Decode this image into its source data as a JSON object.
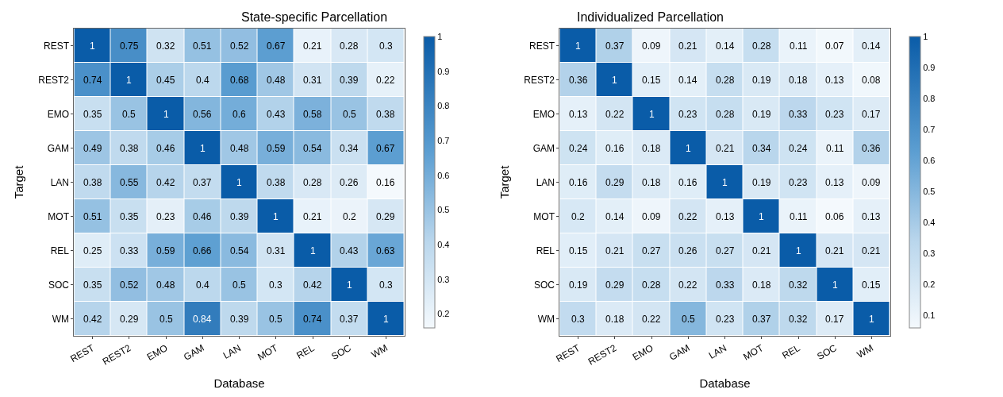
{
  "chart_data": [
    {
      "type": "heatmap",
      "title": "State-specific Parcellation",
      "xlabel": "Database",
      "ylabel": "Target",
      "categories": [
        "REST",
        "REST2",
        "EMO",
        "GAM",
        "LAN",
        "MOT",
        "REL",
        "SOC",
        "WM"
      ],
      "y_categories": [
        "REST",
        "REST2",
        "EMO",
        "GAM",
        "LAN",
        "MOT",
        "REL",
        "SOC",
        "WM"
      ],
      "cells": [
        [
          1,
          0.75,
          0.32,
          0.51,
          0.52,
          0.67,
          0.21,
          0.28,
          0.3
        ],
        [
          0.74,
          1,
          0.45,
          0.4,
          0.68,
          0.48,
          0.31,
          0.39,
          0.22
        ],
        [
          0.35,
          0.5,
          1,
          0.56,
          0.6,
          0.43,
          0.58,
          0.5,
          0.38
        ],
        [
          0.49,
          0.38,
          0.46,
          1,
          0.48,
          0.59,
          0.54,
          0.34,
          0.67
        ],
        [
          0.38,
          0.55,
          0.42,
          0.37,
          1,
          0.38,
          0.28,
          0.26,
          0.16
        ],
        [
          0.51,
          0.35,
          0.23,
          0.46,
          0.39,
          1,
          0.21,
          0.2,
          0.29
        ],
        [
          0.25,
          0.33,
          0.59,
          0.66,
          0.54,
          0.31,
          1,
          0.43,
          0.63
        ],
        [
          0.35,
          0.52,
          0.48,
          0.4,
          0.5,
          0.3,
          0.42,
          1,
          0.3
        ],
        [
          0.42,
          0.29,
          0.5,
          0.84,
          0.39,
          0.5,
          0.74,
          0.37,
          1
        ]
      ],
      "data_labels": true,
      "clim": [
        0.16,
        1
      ],
      "cticks": [
        0.2,
        0.3,
        0.4,
        0.5,
        0.6,
        0.7,
        0.8,
        0.9,
        1
      ]
    },
    {
      "type": "heatmap",
      "title": "Individualized Parcellation",
      "xlabel": "Database",
      "ylabel": "Target",
      "categories": [
        "REST",
        "REST2",
        "EMO",
        "GAM",
        "LAN",
        "MOT",
        "REL",
        "SOC",
        "WM"
      ],
      "y_categories": [
        "REST",
        "REST2",
        "EMO",
        "GAM",
        "LAN",
        "MOT",
        "REL",
        "SOC",
        "WM"
      ],
      "cells": [
        [
          1,
          0.37,
          0.09,
          0.21,
          0.14,
          0.28,
          0.11,
          0.07,
          0.14
        ],
        [
          0.36,
          1,
          0.15,
          0.14,
          0.28,
          0.19,
          0.18,
          0.13,
          0.08
        ],
        [
          0.13,
          0.22,
          1,
          0.23,
          0.28,
          0.19,
          0.33,
          0.23,
          0.17
        ],
        [
          0.24,
          0.16,
          0.18,
          1,
          0.21,
          0.34,
          0.24,
          0.11,
          0.36
        ],
        [
          0.16,
          0.29,
          0.18,
          0.16,
          1,
          0.19,
          0.23,
          0.13,
          0.09
        ],
        [
          0.2,
          0.14,
          0.09,
          0.22,
          0.13,
          1,
          0.11,
          0.06,
          0.13
        ],
        [
          0.15,
          0.21,
          0.27,
          0.26,
          0.27,
          0.21,
          1,
          0.21,
          0.21
        ],
        [
          0.19,
          0.29,
          0.28,
          0.22,
          0.33,
          0.18,
          0.32,
          1,
          0.15
        ],
        [
          0.3,
          0.18,
          0.22,
          0.5,
          0.23,
          0.37,
          0.32,
          0.17,
          1
        ]
      ],
      "data_labels": true,
      "clim": [
        0.06,
        1
      ],
      "cticks": [
        0.1,
        0.2,
        0.3,
        0.4,
        0.5,
        0.6,
        0.7,
        0.8,
        0.9,
        1
      ]
    }
  ]
}
